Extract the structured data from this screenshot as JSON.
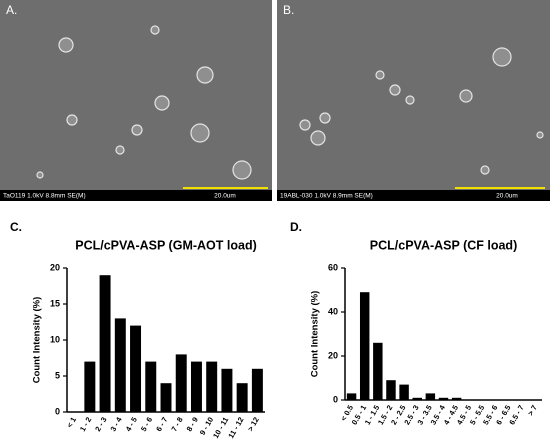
{
  "micrographs": [
    {
      "label": "A.",
      "info": "TaO119 1.0kV 8.8mm SE(M)",
      "scale": "20.0um"
    },
    {
      "label": "B.",
      "info": "19ABL-030 1.0kV 8.9mm SE(M)",
      "scale": "20.0um"
    }
  ],
  "chart_data": [
    {
      "type": "bar",
      "panel_label": "C.",
      "title": "PCL/cPVA-ASP (GM-AOT load)",
      "y_label": "Count Intensity (%)",
      "categories": [
        "< 1",
        "1 - 2",
        "2 - 3",
        "3 - 4",
        "4 - 5",
        "5 - 6",
        "6 - 7",
        "7 - 8",
        "8 - 9",
        "9 - 10",
        "10 - 11",
        "11 - 12",
        "> 12"
      ],
      "values": [
        0,
        7,
        19,
        13,
        12,
        7,
        4,
        8,
        7,
        7,
        6,
        4,
        6
      ],
      "color": "#000000",
      "ylim": [
        0,
        20
      ],
      "yticks": [
        0,
        5,
        10,
        15,
        20
      ],
      "grid": false
    },
    {
      "type": "bar",
      "panel_label": "D.",
      "title": "PCL/cPVA-ASP (CF load)",
      "y_label": "Count Intensity (%)",
      "categories": [
        "< 0.5",
        "0.5 - 1",
        "1 - 1.5",
        "1.5 - 2",
        "2 - 2.5",
        "2.5 - 3",
        "3 - 3.5",
        "3.5 - 4",
        "4 - 4.5",
        "4.5 - 5",
        "5 - 5.5",
        "5.5 - 6",
        "6 - 6.5",
        "6.5 - 7",
        "> 7"
      ],
      "values": [
        3,
        49,
        26,
        9,
        7,
        1,
        3,
        1,
        1,
        0,
        0,
        0,
        0,
        0,
        0
      ],
      "color": "#000000",
      "ylim": [
        0,
        60
      ],
      "yticks": [
        0,
        20,
        40,
        60
      ],
      "grid": false
    }
  ]
}
